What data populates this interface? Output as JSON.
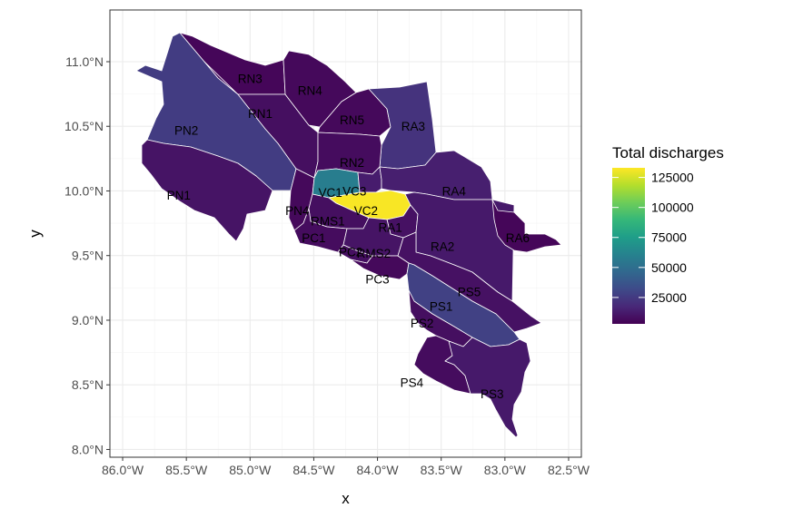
{
  "chart_data": {
    "type": "choropleth",
    "xlabel": "x",
    "ylabel": "y",
    "xlim": [
      -86.1,
      -82.4
    ],
    "ylim": [
      7.94,
      11.4
    ],
    "x_ticks": [
      {
        "value": -86.0,
        "label": "86.0°W"
      },
      {
        "value": -85.5,
        "label": "85.5°W"
      },
      {
        "value": -85.0,
        "label": "85.0°W"
      },
      {
        "value": -84.5,
        "label": "84.5°W"
      },
      {
        "value": -84.0,
        "label": "84.0°W"
      },
      {
        "value": -83.5,
        "label": "83.5°W"
      },
      {
        "value": -83.0,
        "label": "83.0°W"
      },
      {
        "value": -82.5,
        "label": "82.5°W"
      }
    ],
    "y_ticks": [
      {
        "value": 8.0,
        "label": "8.0°N"
      },
      {
        "value": 8.5,
        "label": "8.5°N"
      },
      {
        "value": 9.0,
        "label": "9.0°N"
      },
      {
        "value": 9.5,
        "label": "9.5°N"
      },
      {
        "value": 10.0,
        "label": "10.0°N"
      },
      {
        "value": 10.5,
        "label": "10.5°N"
      },
      {
        "value": 11.0,
        "label": "11.0°N"
      }
    ],
    "grid": true,
    "legend": {
      "title": "Total discharges",
      "position": "right",
      "min": 3000,
      "max": 133000,
      "breaks": [
        {
          "value": 125000,
          "label": "125000"
        },
        {
          "value": 100000,
          "label": "100000"
        },
        {
          "value": 75000,
          "label": "75000"
        },
        {
          "value": 50000,
          "label": "50000"
        },
        {
          "value": 25000,
          "label": "25000"
        }
      ],
      "palette": [
        "#440154",
        "#482878",
        "#3E4A89",
        "#31688E",
        "#26828E",
        "#1F9E89",
        "#35B779",
        "#6DCD59",
        "#B4DE2C",
        "#FDE725"
      ]
    },
    "regions": [
      {
        "name": "RN3",
        "value": 5000,
        "label_at": [
          -85.0,
          10.87
        ]
      },
      {
        "name": "RN4",
        "value": 6000,
        "label_at": [
          -84.53,
          10.78
        ]
      },
      {
        "name": "RN1",
        "value": 8000,
        "label_at": [
          -84.92,
          10.6
        ]
      },
      {
        "name": "RN5",
        "value": 6000,
        "label_at": [
          -84.2,
          10.55
        ]
      },
      {
        "name": "RN2",
        "value": 7000,
        "label_at": [
          -84.2,
          10.22
        ]
      },
      {
        "name": "PN2",
        "value": 26000,
        "label_at": [
          -85.5,
          10.47
        ]
      },
      {
        "name": "PN1",
        "value": 10000,
        "label_at": [
          -85.56,
          9.97
        ]
      },
      {
        "name": "PN4",
        "value": 6000,
        "label_at": [
          -84.63,
          9.85
        ]
      },
      {
        "name": "RA3",
        "value": 22000,
        "label_at": [
          -83.72,
          10.5
        ]
      },
      {
        "name": "RA4",
        "value": 14000,
        "label_at": [
          -83.4,
          10.0
        ]
      },
      {
        "name": "RA2",
        "value": 12000,
        "label_at": [
          -83.49,
          9.57
        ]
      },
      {
        "name": "RA6",
        "value": 5000,
        "label_at": [
          -82.9,
          9.64
        ]
      },
      {
        "name": "RA1",
        "value": 9000,
        "label_at": [
          -83.9,
          9.72
        ]
      },
      {
        "name": "VC1",
        "value": 58000,
        "label_at": [
          -84.37,
          9.99
        ]
      },
      {
        "name": "VC3",
        "value": 13000,
        "label_at": [
          -84.18,
          10.0
        ]
      },
      {
        "name": "VC2",
        "value": 132000,
        "label_at": [
          -84.09,
          9.85
        ]
      },
      {
        "name": "RMS1",
        "value": 8000,
        "label_at": [
          -84.39,
          9.77
        ]
      },
      {
        "name": "RMS2",
        "value": 10000,
        "label_at": [
          -84.03,
          9.52
        ]
      },
      {
        "name": "PC1",
        "value": 7000,
        "label_at": [
          -84.5,
          9.64
        ]
      },
      {
        "name": "PC2",
        "value": 8000,
        "label_at": [
          -84.21,
          9.53
        ]
      },
      {
        "name": "PC3",
        "value": 6000,
        "label_at": [
          -84.0,
          9.32
        ]
      },
      {
        "name": "PS5",
        "value": 9000,
        "label_at": [
          -83.28,
          9.22
        ]
      },
      {
        "name": "PS1",
        "value": 28000,
        "label_at": [
          -83.5,
          9.11
        ]
      },
      {
        "name": "PS2",
        "value": 8000,
        "label_at": [
          -83.65,
          8.98
        ]
      },
      {
        "name": "PS4",
        "value": 7000,
        "label_at": [
          -83.73,
          8.52
        ]
      },
      {
        "name": "PS3",
        "value": 12000,
        "label_at": [
          -83.1,
          8.43
        ]
      }
    ]
  }
}
